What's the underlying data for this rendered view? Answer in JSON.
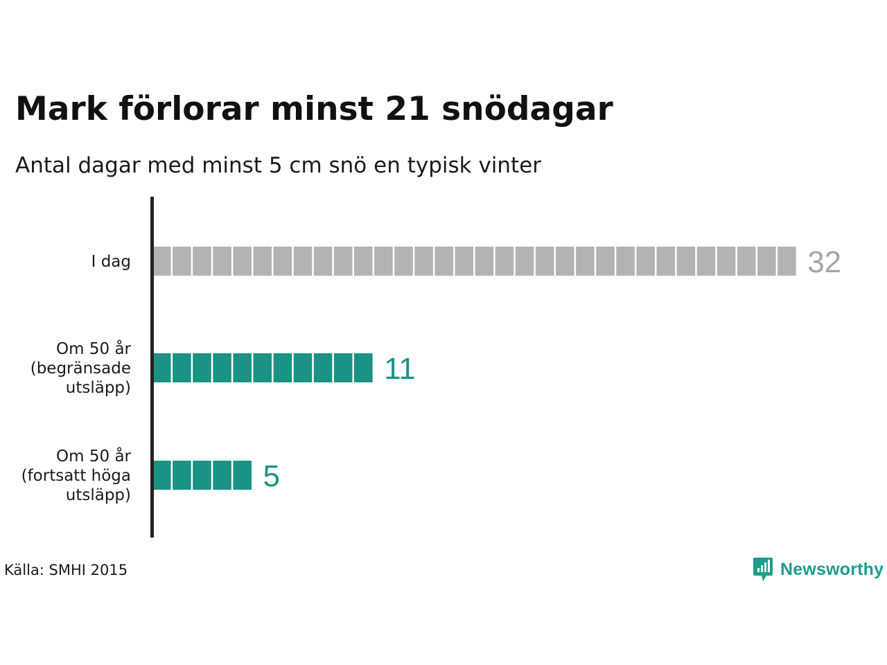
{
  "chart_data": {
    "type": "bar",
    "orientation": "horizontal",
    "title": "Mark förlorar minst 21 snödagar",
    "subtitle": "Antal dagar med minst 5 cm snö en typisk vinter",
    "categories": [
      [
        "I dag"
      ],
      [
        "Om 50 år",
        "(begränsade",
        "utsläpp)"
      ],
      [
        "Om 50 år",
        "(fortsatt höga",
        "utsläpp)"
      ]
    ],
    "values": [
      32,
      11,
      5
    ],
    "value_labels": [
      "32",
      "11",
      "5"
    ],
    "bar_colors": [
      "#b3b3b3",
      "#1a9384",
      "#1a9384"
    ],
    "value_label_colors": [
      "#a6a6a6",
      "#1a9384",
      "#1a9384"
    ],
    "bar_style": "one block per day",
    "grid": false,
    "legend": "none"
  },
  "footer": {
    "source": "Källa: SMHI 2015",
    "brand": "Newsworthy",
    "brand_color": "#1a9e8c",
    "brand_icon": "chart-bubble-icon"
  }
}
